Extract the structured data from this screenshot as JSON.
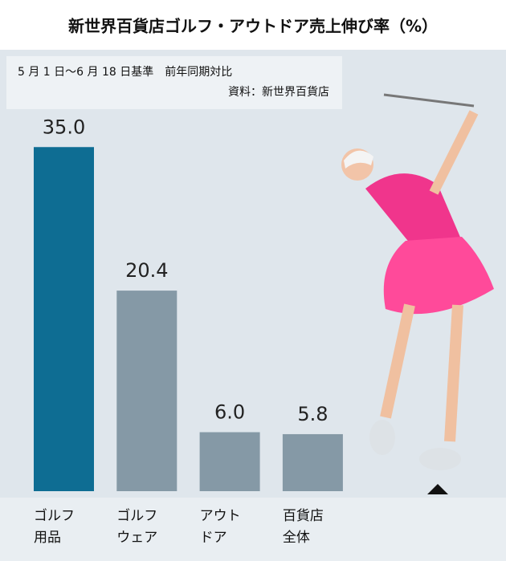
{
  "chart_data": {
    "type": "bar",
    "title": "新世界百貨店ゴルフ・アウトドア売上伸び率（%）",
    "subtitle": "5 月 1 日～6 月 18 日基準　前年同期対比",
    "source": "資料：新世界百貨店",
    "categories": [
      [
        "ゴルフ",
        "用品"
      ],
      [
        "ゴルフ",
        "ウェア"
      ],
      [
        "アウト",
        "ドア"
      ],
      [
        "百貨店",
        "全体"
      ]
    ],
    "values": [
      35.0,
      20.4,
      6.0,
      5.8
    ],
    "value_labels": [
      "35.0",
      "20.4",
      "6.0",
      "5.8"
    ],
    "colors": [
      "#0e6d93",
      "#8599a6",
      "#8599a6",
      "#8599a6"
    ]
  }
}
